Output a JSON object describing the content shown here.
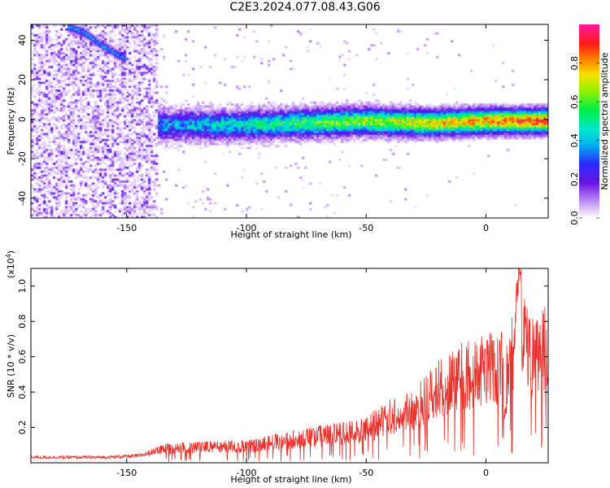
{
  "title": "C2E3.2024.077.08.43.G06",
  "chart_data": [
    {
      "type": "heatmap",
      "xlabel": "Height of straight line (km)",
      "ylabel": "Frequency (Hz)",
      "xlim": [
        -190,
        26
      ],
      "ylim": [
        -50,
        48
      ],
      "x_ticks": [
        -150,
        -100,
        -50,
        0
      ],
      "x_tick_labels": [
        "-150",
        "-100",
        "-50",
        "0"
      ],
      "y_ticks": [
        40,
        20,
        0,
        -20,
        -40
      ],
      "y_tick_labels": [
        "40",
        "20",
        "0",
        "-20",
        "-40"
      ],
      "colorbar": {
        "label": "Normalized spectral amplitude",
        "range": [
          0,
          1
        ],
        "ticks": [
          0.0,
          0.2,
          0.4,
          0.6,
          0.8
        ],
        "tick_labels": [
          "0.0",
          "0.2",
          "0.4",
          "0.6",
          "0.8"
        ],
        "colormap": "rainbow (white-violet-blue-cyan-green-yellow-red-magenta)"
      },
      "band_centerline": [
        {
          "x": -136,
          "y": -3
        },
        {
          "x": -100,
          "y": -3
        },
        {
          "x": -75,
          "y": -2
        },
        {
          "x": -50,
          "y": -1
        },
        {
          "x": -25,
          "y": -2
        },
        {
          "x": 0,
          "y": -1
        },
        {
          "x": 25,
          "y": -1
        }
      ],
      "drifting_feature": [
        {
          "x": -175,
          "y": 47
        },
        {
          "x": -168,
          "y": 44
        },
        {
          "x": -160,
          "y": 37
        },
        {
          "x": -150,
          "y": 30
        }
      ],
      "noise_region_xlim": [
        -190,
        -137
      ]
    },
    {
      "type": "line",
      "xlabel": "Height of straight line (km)",
      "ylabel": "SNR (10 * v/v)",
      "y_scale_label": "(x10",
      "y_scale_exponent": "4",
      "y_scale_suffix": ")",
      "xlim": [
        -190,
        26
      ],
      "ylim": [
        0,
        1.1
      ],
      "x_ticks": [
        -150,
        -100,
        -50,
        0
      ],
      "x_tick_labels": [
        "-150",
        "-100",
        "-50",
        "0"
      ],
      "y_ticks": [
        0.2,
        0.4,
        0.6,
        0.8,
        1.0
      ],
      "y_tick_labels": [
        "0.2",
        "0.4",
        "0.6",
        "0.8",
        "1.0"
      ],
      "series": [
        {
          "color": "#e8312b",
          "envelope": [
            {
              "x": -190,
              "y": 0.04
            },
            {
              "x": -160,
              "y": 0.04
            },
            {
              "x": -145,
              "y": 0.05
            },
            {
              "x": -135,
              "y": 0.1
            },
            {
              "x": -120,
              "y": 0.12
            },
            {
              "x": -100,
              "y": 0.12
            },
            {
              "x": -80,
              "y": 0.18
            },
            {
              "x": -60,
              "y": 0.22
            },
            {
              "x": -50,
              "y": 0.25
            },
            {
              "x": -40,
              "y": 0.35
            },
            {
              "x": -30,
              "y": 0.4
            },
            {
              "x": -20,
              "y": 0.55
            },
            {
              "x": -10,
              "y": 0.65
            },
            {
              "x": 0,
              "y": 0.7
            },
            {
              "x": 10,
              "y": 0.72
            },
            {
              "x": 14,
              "y": 1.1
            },
            {
              "x": 18,
              "y": 0.8
            },
            {
              "x": 26,
              "y": 0.88
            }
          ]
        }
      ]
    }
  ]
}
